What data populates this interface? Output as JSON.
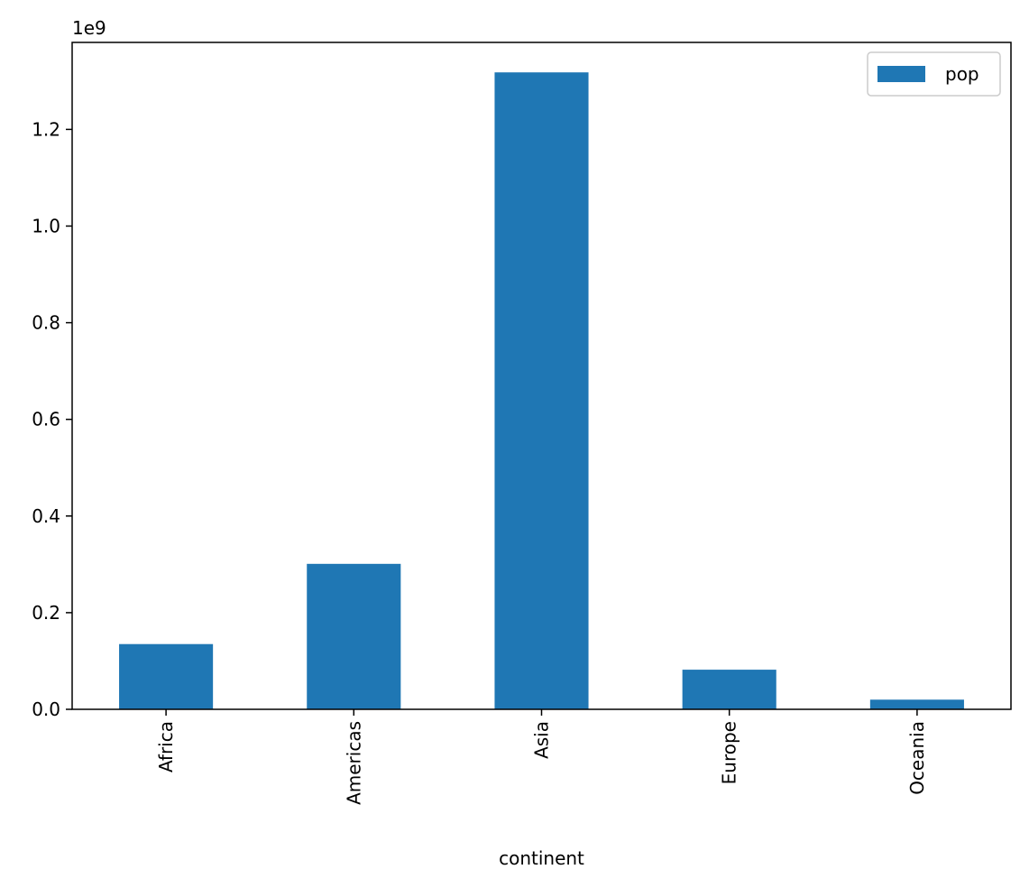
{
  "chart_data": {
    "type": "bar",
    "title": "",
    "xlabel": "continent",
    "ylabel": "",
    "categories": [
      "Africa",
      "Americas",
      "Asia",
      "Europe",
      "Oceania"
    ],
    "series": [
      {
        "name": "pop",
        "values": [
          135000000,
          301000000,
          1318000000,
          82000000,
          20000000
        ],
        "color": "#1f77b4"
      }
    ],
    "ylim": [
      0,
      1380000000
    ],
    "yticks": [
      0,
      200000000,
      400000000,
      600000000,
      800000000,
      1000000000,
      1200000000
    ],
    "ytick_labels": [
      "0.0",
      "0.2",
      "0.4",
      "0.6",
      "0.8",
      "1.0",
      "1.2"
    ],
    "y_offset_label": "1e9",
    "grid": false,
    "legend_position": "top-right"
  }
}
